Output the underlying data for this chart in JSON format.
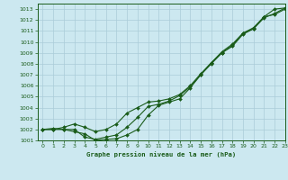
{
  "title": "Graphe pression niveau de la mer (hPa)",
  "bg_color": "#cce8f0",
  "grid_color": "#aaccd8",
  "line_color": "#1a5c1a",
  "xlim": [
    -0.5,
    23
  ],
  "ylim": [
    1001,
    1013.5
  ],
  "xticks": [
    0,
    1,
    2,
    3,
    4,
    5,
    6,
    7,
    8,
    9,
    10,
    11,
    12,
    13,
    14,
    15,
    16,
    17,
    18,
    19,
    20,
    21,
    22,
    23
  ],
  "yticks": [
    1001,
    1002,
    1003,
    1004,
    1005,
    1006,
    1007,
    1008,
    1009,
    1010,
    1011,
    1012,
    1013
  ],
  "line1_x": [
    0,
    1,
    2,
    3,
    4,
    5,
    6,
    7,
    8,
    9,
    10,
    11,
    12,
    13,
    14,
    15,
    16,
    17,
    18,
    19,
    20,
    21,
    22,
    23
  ],
  "line1_y": [
    1002.0,
    1002.0,
    1002.0,
    1001.8,
    1001.6,
    1001.0,
    1001.1,
    1001.15,
    1001.5,
    1002.0,
    1003.3,
    1004.2,
    1004.5,
    1004.8,
    1005.8,
    1007.0,
    1008.1,
    1009.0,
    1009.6,
    1010.7,
    1011.2,
    1012.3,
    1013.0,
    1013.1
  ],
  "line2_x": [
    0,
    1,
    2,
    3,
    4,
    5,
    6,
    7,
    8,
    9,
    10,
    11,
    12,
    13,
    14,
    15,
    16,
    17,
    18,
    19,
    20,
    21,
    22,
    23
  ],
  "line2_y": [
    1002.0,
    1002.1,
    1002.0,
    1002.0,
    1001.3,
    1001.1,
    1001.3,
    1001.5,
    1002.2,
    1003.1,
    1004.1,
    1004.3,
    1004.6,
    1005.1,
    1005.9,
    1007.0,
    1008.0,
    1009.0,
    1009.7,
    1010.8,
    1011.2,
    1012.2,
    1012.6,
    1013.1
  ],
  "line3_x": [
    0,
    1,
    2,
    3,
    4,
    5,
    6,
    7,
    8,
    9,
    10,
    11,
    12,
    13,
    14,
    15,
    16,
    17,
    18,
    19,
    20,
    21,
    22,
    23
  ],
  "line3_y": [
    1002.0,
    1002.0,
    1002.2,
    1002.5,
    1002.2,
    1001.8,
    1002.0,
    1002.5,
    1003.5,
    1004.0,
    1004.5,
    1004.6,
    1004.8,
    1005.2,
    1006.0,
    1007.1,
    1008.1,
    1009.1,
    1009.8,
    1010.8,
    1011.3,
    1012.3,
    1012.5,
    1013.0
  ]
}
